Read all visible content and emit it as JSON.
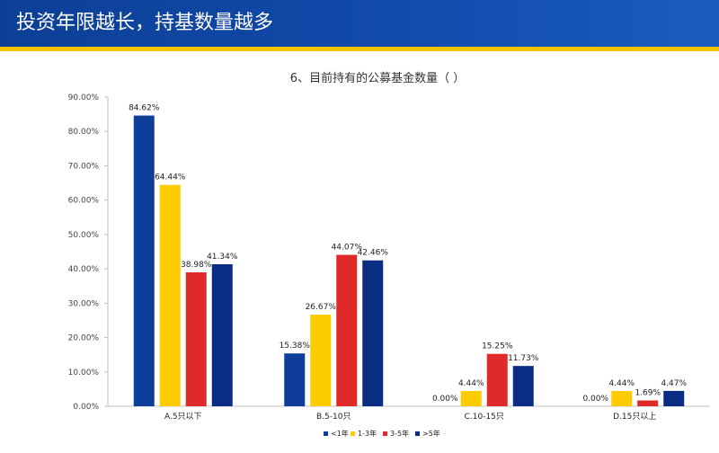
{
  "header": {
    "title": "投资年限越长，持基数量越多"
  },
  "colors": {
    "header_bg": "#114bab",
    "stripe": "#f5c400",
    "series": [
      "#0e3d9a",
      "#fccc00",
      "#e02a2a",
      "#0b2c83"
    ]
  },
  "chart_data": {
    "type": "bar",
    "title": "6、目前持有的公募基金数量（   ）",
    "categories": [
      "A.5只以下",
      "B.5-10只",
      "C.10-15只",
      "D.15只以上"
    ],
    "series": [
      {
        "name": "<1年",
        "values": [
          84.62,
          15.38,
          0.0,
          0.0
        ],
        "labels": [
          "84.62%",
          "15.38%",
          "0.00%",
          "0.00%"
        ]
      },
      {
        "name": "1-3年",
        "values": [
          64.44,
          26.67,
          4.44,
          4.44
        ],
        "labels": [
          "64.44%",
          "26.67%",
          "4.44%",
          "4.44%"
        ]
      },
      {
        "name": "3-5年",
        "values": [
          38.98,
          44.07,
          15.25,
          1.69
        ],
        "labels": [
          "38.98%",
          "44.07%",
          "15.25%",
          "1.69%"
        ]
      },
      {
        "name": ">5年",
        "values": [
          41.34,
          42.46,
          11.73,
          4.47
        ],
        "labels": [
          "41.34%",
          "42.46%",
          "11.73%",
          "4.47%"
        ]
      }
    ],
    "yticks": [
      "0.00%",
      "10.00%",
      "20.00%",
      "30.00%",
      "40.00%",
      "50.00%",
      "60.00%",
      "70.00%",
      "80.00%",
      "90.00%"
    ],
    "ylim": [
      0,
      90
    ],
    "xlabel": "",
    "ylabel": "",
    "grid": false,
    "legend_position": "bottom"
  }
}
